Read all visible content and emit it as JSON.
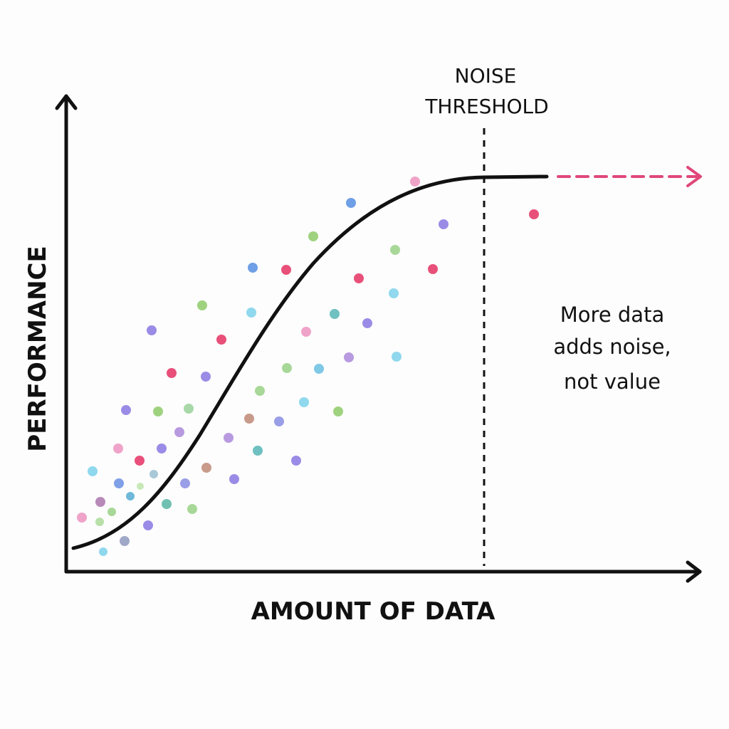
{
  "axes": {
    "x_label": "AMOUNT OF DATA",
    "y_label": "PERFORMANCE"
  },
  "threshold": {
    "label": [
      "NOISE",
      "THRESHOLD"
    ]
  },
  "annotation": [
    "More data",
    "adds noise,",
    "not value"
  ]
}
